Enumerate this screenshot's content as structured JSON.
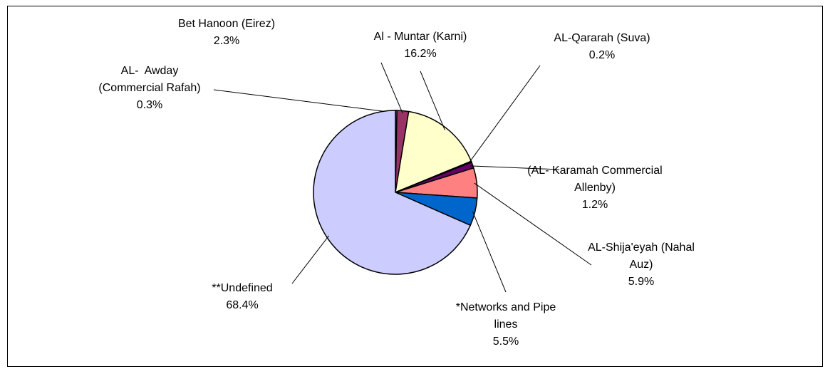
{
  "chart_data": {
    "type": "pie",
    "categories": [
      "AL-  Awday (Commercial Rafah)",
      "Bet Hanoon (Eirez)",
      "Al - Muntar (Karni)",
      "AL-Qararah (Suva)",
      "(AL- Karamah Commercial Allenby)",
      "AL-Shija'eyah (Nahal Auz)",
      "*Networks and Pipe lines",
      "**Undefined"
    ],
    "values": [
      0.3,
      2.3,
      16.2,
      0.2,
      1.2,
      5.9,
      5.5,
      68.4
    ],
    "value_labels": [
      "0.3%",
      "2.3%",
      "16.2%",
      "0.2%",
      "1.2%",
      "5.9%",
      "5.5%",
      "68.4%"
    ],
    "colors": [
      "#9999ff",
      "#993366",
      "#ffffcc",
      "#ccffff",
      "#660066",
      "#ff8080",
      "#0066cc",
      "#ccccff"
    ]
  }
}
